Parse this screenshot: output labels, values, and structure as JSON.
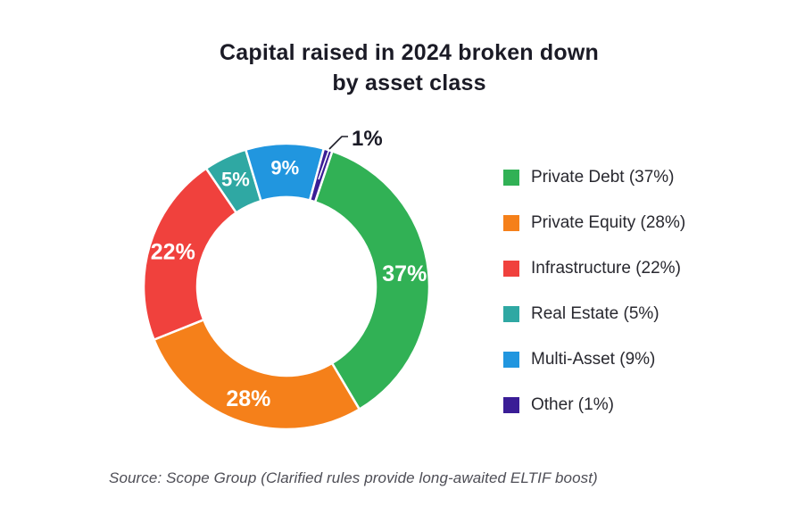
{
  "header": {
    "title_line1": "Capital raised in 2024 broken down",
    "title_line2": "by asset class"
  },
  "footer": {
    "source": "Source: Scope Group (Clarified rules provide long-awaited ELTIF boost)"
  },
  "chart_data": {
    "type": "pie",
    "subtype": "donut",
    "title": "Capital raised in 2024 broken down by asset class",
    "unit": "%",
    "direction": "clockwise",
    "start_angle_deg": 18.7,
    "legend_position": "right",
    "values_sum_note": "displayed percentages sum to 102%",
    "segments": [
      {
        "label": "Private Debt",
        "value": 37,
        "pct_label": "37%",
        "legend_label": "Private Debt (37%)",
        "color": "#31B155",
        "label_pos": "inside"
      },
      {
        "label": "Private Equity",
        "value": 28,
        "pct_label": "28%",
        "legend_label": "Private Equity (28%)",
        "color": "#F5801A",
        "label_pos": "inside"
      },
      {
        "label": "Infrastructure",
        "value": 22,
        "pct_label": "22%",
        "legend_label": "Infrastructure (22%)",
        "color": "#F0413D",
        "label_pos": "inside"
      },
      {
        "label": "Real Estate",
        "value": 5,
        "pct_label": "5%",
        "legend_label": "Real Estate (5%)",
        "color": "#2FA8A3",
        "label_pos": "inside"
      },
      {
        "label": "Multi-Asset",
        "value": 9,
        "pct_label": "9%",
        "legend_label": "Multi-Asset (9%)",
        "color": "#2196DF",
        "label_pos": "inside"
      },
      {
        "label": "Other",
        "value": 1,
        "pct_label": "1%",
        "legend_label": "Other (1%)",
        "color": "#3A1D96",
        "label_pos": "outside"
      }
    ],
    "colors": {
      "title_text": "#1B1B26",
      "inside_label_text": "#FFFFFF",
      "outside_label_text": "#1B1B26",
      "slice_separator": "#FFFFFF"
    }
  }
}
